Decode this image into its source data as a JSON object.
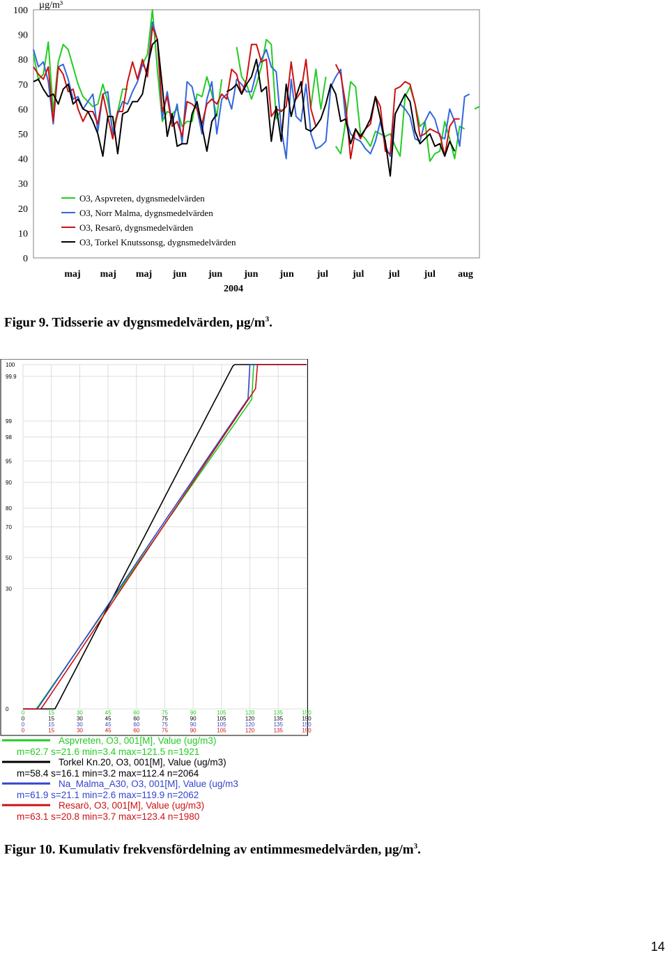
{
  "chart_data": [
    {
      "type": "line",
      "ylabel": "µg/m³",
      "ylim": [
        0,
        100
      ],
      "y_ticks": [
        "100",
        "90",
        "80",
        "70",
        "60",
        "50",
        "40",
        "30",
        "20",
        "10",
        "0"
      ],
      "x_tick_labels": [
        "maj",
        "maj",
        "maj",
        "jun",
        "jun",
        "jun",
        "jun",
        "jul",
        "jul",
        "jul",
        "jul",
        "aug"
      ],
      "x_year_label": "2004",
      "xlim": [
        0,
        90
      ],
      "grid": false,
      "legend_position": "lower-left inside plot",
      "series": [
        {
          "name": "O3, Aspvreten, dygnsmedelvärden",
          "color": "#22cc22",
          "values": [
            82,
            72,
            74,
            87,
            59,
            79,
            86,
            84,
            77,
            70,
            65,
            63,
            61,
            62,
            70,
            63,
            51,
            59,
            68,
            68,
            null,
            null,
            78,
            82,
            100,
            76,
            55,
            59,
            58,
            60,
            53,
            55,
            55,
            66,
            65,
            73,
            66,
            57,
            72,
            null,
            null,
            85,
            73,
            70,
            64,
            70,
            77,
            88,
            86,
            56,
            60,
            null,
            null,
            null,
            null,
            null,
            61,
            76,
            60,
            73,
            null,
            45,
            42,
            55,
            71,
            69,
            50,
            48,
            45,
            51,
            50,
            49,
            50,
            45,
            41,
            65,
            69,
            62,
            53,
            55,
            39,
            42,
            43,
            55,
            48,
            40,
            53,
            52,
            null,
            60,
            61
          ]
        },
        {
          "name": "O3, Norr Malma, dygnsmedelvärden",
          "color": "#3366dd",
          "values": [
            84,
            77,
            79,
            71,
            54,
            77,
            78,
            72,
            64,
            65,
            60,
            63,
            66,
            51,
            66,
            67,
            50,
            58,
            63,
            62,
            67,
            71,
            78,
            75,
            95,
            88,
            56,
            67,
            54,
            62,
            46,
            71,
            69,
            60,
            50,
            64,
            71,
            50,
            64,
            66,
            60,
            72,
            70,
            67,
            67,
            75,
            80,
            84,
            77,
            75,
            52,
            40,
            72,
            57,
            55,
            70,
            50,
            44,
            45,
            47,
            69,
            73,
            76,
            56,
            50,
            48,
            47,
            44,
            42,
            47,
            55,
            45,
            41,
            58,
            62,
            60,
            57,
            48,
            47,
            55,
            59,
            56,
            49,
            48,
            60,
            55,
            45,
            65,
            66,
            null,
            null
          ]
        },
        {
          "name": "O3, Resarö, dygnsmedelvärden",
          "color": "#cc1111",
          "values": [
            77,
            74,
            72,
            77,
            55,
            77,
            74,
            67,
            68,
            60,
            55,
            59,
            59,
            54,
            66,
            57,
            48,
            59,
            59,
            71,
            79,
            72,
            80,
            73,
            93,
            88,
            59,
            65,
            53,
            55,
            49,
            63,
            62,
            60,
            54,
            62,
            64,
            62,
            66,
            64,
            76,
            74,
            66,
            72,
            86,
            86,
            79,
            80,
            57,
            60,
            59,
            61,
            79,
            64,
            67,
            80,
            60,
            53,
            null,
            null,
            null,
            78,
            74,
            62,
            40,
            52,
            48,
            52,
            54,
            65,
            61,
            43,
            42,
            68,
            69,
            71,
            70,
            62,
            49,
            50,
            52,
            51,
            50,
            41,
            53,
            56,
            56,
            null,
            null,
            null,
            null
          ]
        },
        {
          "name": "O3, Torkel Knutssonsg, dygnsmedelvärden",
          "color": "#000000",
          "values": [
            71,
            72,
            68,
            65,
            66,
            62,
            68,
            70,
            62,
            64,
            60,
            59,
            55,
            50,
            41,
            57,
            57,
            42,
            58,
            59,
            63,
            63,
            66,
            77,
            86,
            88,
            69,
            49,
            58,
            45,
            46,
            46,
            58,
            63,
            53,
            43,
            55,
            58,
            null,
            67,
            68,
            70,
            66,
            70,
            73,
            80,
            67,
            69,
            47,
            61,
            47,
            70,
            57,
            65,
            71,
            52,
            51,
            53,
            56,
            62,
            70,
            66,
            55,
            56,
            46,
            52,
            49,
            52,
            56,
            65,
            56,
            47,
            33,
            58,
            62,
            66,
            63,
            51,
            46,
            48,
            50,
            45,
            46,
            41,
            47,
            43,
            null,
            null,
            null,
            null,
            null
          ]
        }
      ]
    },
    {
      "type": "line",
      "y_ticks": [
        "100",
        "99.9",
        "99",
        "98",
        "95",
        "90",
        "80",
        "70",
        "50",
        "30",
        "0"
      ],
      "y_tick_probs": [
        100,
        99.9,
        99,
        98,
        95,
        90,
        80,
        70,
        50,
        30,
        0
      ],
      "x_tick_rows": [
        [
          "0",
          "15",
          "30",
          "45",
          "60",
          "75",
          "90",
          "105",
          "120",
          "135",
          "150"
        ],
        [
          "0",
          "15",
          "30",
          "45",
          "60",
          "75",
          "90",
          "105",
          "120",
          "135",
          "150"
        ],
        [
          "0",
          "15",
          "30",
          "45",
          "60",
          "75",
          "90",
          "105",
          "120",
          "135",
          "150"
        ],
        [
          "0",
          "15",
          "30",
          "45",
          "60",
          "75",
          "90",
          "105",
          "120",
          "135",
          "150"
        ]
      ],
      "x_tick_row_colors": [
        "#22cc22",
        "#000000",
        "#3344cc",
        "#cc1111"
      ],
      "xlim": [
        0,
        150
      ],
      "grid": true,
      "series": [
        {
          "name": "Aspvreten, O3, 001[M], Value (ug/m3)",
          "stats": "m=62.7 s=21.6 min=3.4 max=121.5 n=1921",
          "color": "#22cc22",
          "mean": 62.7,
          "sd": 21.6,
          "min": 3.4,
          "max": 121.5
        },
        {
          "name": "Torkel Kn.20, O3, 001[M], Value (ug/m3)",
          "stats": "m=58.4 s=16.1 min=3.2 max=112.4 n=2064",
          "color": "#000000",
          "mean": 58.4,
          "sd": 16.1,
          "min": 3.2,
          "max": 112.4
        },
        {
          "name": "Na_Malma_A30, O3, 001[M], Value (ug/m3",
          "stats": "m=61.9 s=21.1 min=2.6 max=119.9 n=2062",
          "color": "#3344cc",
          "mean": 61.9,
          "sd": 21.1,
          "min": 2.6,
          "max": 119.9
        },
        {
          "name": "Resarö, O3, 001[M], Value (ug/m3)",
          "stats": "m=63.1 s=20.8 min=3.7 max=123.4 n=1980",
          "color": "#cc1111",
          "mean": 63.1,
          "sd": 20.8,
          "min": 3.7,
          "max": 123.4
        }
      ]
    }
  ],
  "captions": {
    "fig9": "Figur 9. Tidsserie av dygnsmedelvärden, µg/m",
    "fig9_sup": "3",
    "fig9_end": ".",
    "fig10": "Figur 10. Kumulativ frekvensfördelning av entimmesmedelvärden, µg/m",
    "fig10_sup": "3",
    "fig10_end": "."
  },
  "page_number": "14"
}
